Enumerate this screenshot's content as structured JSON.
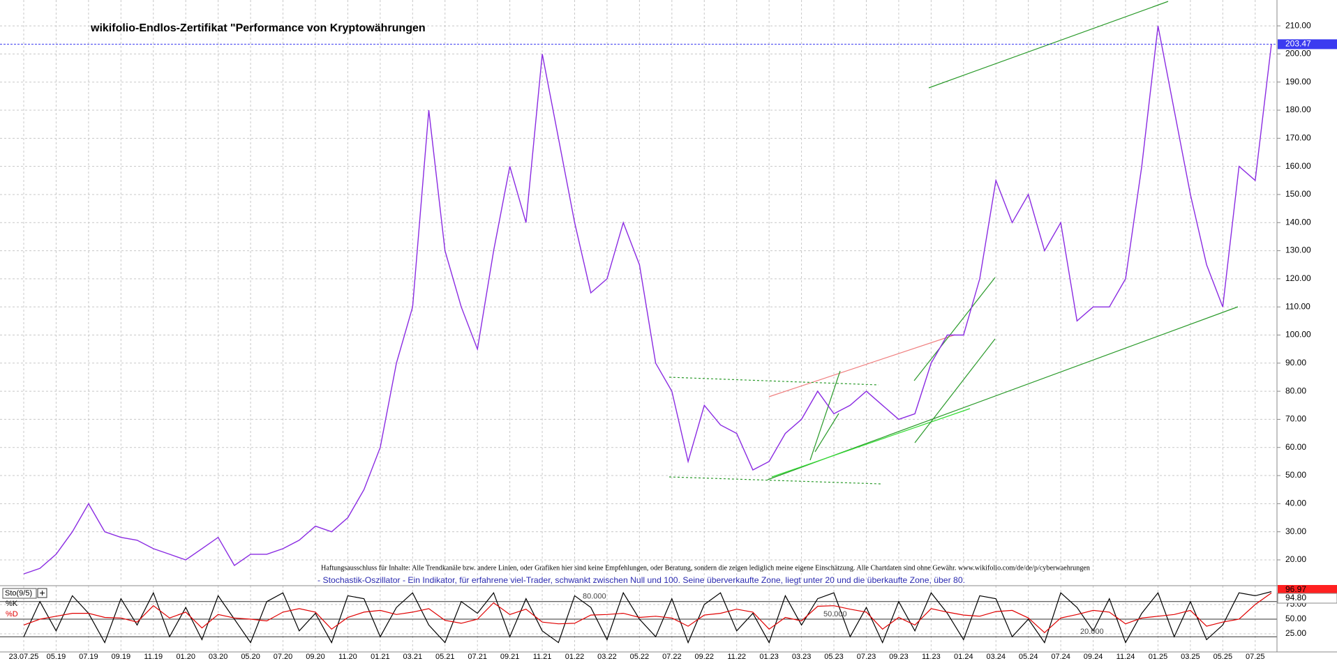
{
  "chart_data": {
    "type": "line",
    "title": "wikifolio-Endlos-Zertifikat \"Performance von Kryptowährungen",
    "annotations": [
      "Haftungsausschluss für Inhalte: Alle Trendkanäle bzw. andere Linien, oder Grafiken hier sind keine Empfehlungen, oder Beratung, sondern die zeigen lediglich meine eigene Einschätzung. Alle Chartdaten sind ohne Gewähr.  www.wikifolio.com/de/de/p/cyberwaehrungen",
      "- Stochastik-Oszillator - Ein Indikator, für erfahrene viel-Trader, schwankt zwischen Null und 100. Seine überverkaufte Zone, liegt unter 20 und die überkaufte Zone, über 80."
    ],
    "indicator_label": "Sto(9/5)",
    "categories": [
      "23.07.25",
      null,
      "05.19",
      null,
      "07.19",
      null,
      "09.19",
      null,
      "11.19",
      null,
      "01.20",
      null,
      "03.20",
      null,
      "05.20",
      null,
      "07.20",
      null,
      "09.20",
      null,
      "11.20",
      null,
      "01.21",
      null,
      "03.21",
      null,
      "05.21",
      null,
      "07.21",
      null,
      "09.21",
      null,
      "11.21",
      null,
      "01.22",
      null,
      "03.22",
      null,
      "05.22",
      null,
      "07.22",
      null,
      "09.22",
      null,
      "11.22",
      null,
      "01.23",
      null,
      "03.23",
      null,
      "05.23",
      null,
      "07.23",
      null,
      "09.23",
      null,
      "11.23",
      null,
      "01.24",
      null,
      "03.24",
      null,
      "05.24",
      null,
      "07.24",
      null,
      "09.24",
      null,
      "11.24",
      null,
      "01.25",
      null,
      "03.25",
      null,
      "05.25",
      null,
      "07.25",
      null
    ],
    "series": [
      {
        "color": "#8a2be2",
        "values": [
          15,
          17,
          22,
          30,
          40,
          30,
          28,
          27,
          24,
          22,
          20,
          24,
          28,
          18,
          22,
          22,
          24,
          27,
          32,
          30,
          35,
          45,
          60,
          90,
          110,
          180,
          130,
          110,
          95,
          130,
          160,
          140,
          200,
          170,
          140,
          115,
          120,
          140,
          125,
          90,
          80,
          55,
          75,
          68,
          65,
          52,
          55,
          65,
          70,
          80,
          72,
          75,
          80,
          75,
          70,
          72,
          90,
          100,
          100,
          120,
          155,
          140,
          150,
          130,
          140,
          105,
          110,
          110,
          120,
          160,
          210,
          180,
          150,
          125,
          110,
          160,
          155,
          203.47
        ]
      },
      {
        "name": "%K",
        "color": "#000000",
        "axis": "y2",
        "values": [
          20,
          80,
          30,
          90,
          60,
          10,
          85,
          40,
          95,
          20,
          70,
          15,
          90,
          50,
          10,
          80,
          95,
          30,
          60,
          10,
          90,
          85,
          20,
          70,
          95,
          40,
          10,
          80,
          60,
          95,
          20,
          85,
          30,
          10,
          90,
          70,
          15,
          95,
          50,
          20,
          85,
          10,
          75,
          95,
          30,
          60,
          10,
          90,
          40,
          85,
          95,
          20,
          70,
          10,
          80,
          30,
          95,
          60,
          15,
          90,
          85,
          20,
          50,
          10,
          95,
          70,
          30,
          85,
          10,
          60,
          95,
          20,
          80,
          15,
          40,
          95,
          90,
          96.97
        ]
      },
      {
        "name": "%D",
        "color": "#e00000",
        "axis": "y2",
        "values": [
          40,
          50,
          55,
          60,
          60,
          53,
          52,
          45,
          73,
          52,
          62,
          35,
          58,
          52,
          50,
          47,
          62,
          68,
          62,
          33,
          53,
          62,
          65,
          58,
          62,
          68,
          48,
          43,
          50,
          78,
          58,
          67,
          45,
          42,
          43,
          57,
          58,
          60,
          53,
          55,
          52,
          38,
          57,
          60,
          67,
          62,
          33,
          53,
          47,
          72,
          73,
          67,
          62,
          33,
          53,
          40,
          68,
          62,
          57,
          55,
          63,
          65,
          52,
          27,
          52,
          58,
          65,
          62,
          42,
          52,
          55,
          58,
          65,
          38,
          45,
          50,
          75,
          94.8
        ],
        "value_labels": [
          null,
          null,
          null,
          null,
          null,
          null,
          null,
          null,
          null,
          null,
          null,
          null,
          null,
          null,
          null,
          null,
          null,
          null,
          null,
          null,
          null,
          null,
          null,
          null,
          null,
          null,
          null,
          null,
          null,
          null,
          null,
          null,
          null,
          null,
          null,
          null,
          null,
          null,
          null,
          null,
          null,
          null,
          null,
          null,
          null,
          null,
          null,
          null,
          null,
          null,
          null,
          null,
          null,
          null,
          null,
          null,
          null,
          null,
          null,
          null,
          null,
          null,
          null,
          null,
          null,
          null,
          null,
          null,
          null,
          null,
          null,
          null,
          null,
          null,
          null,
          null,
          null,
          "94.80"
        ]
      }
    ],
    "ylim": [
      12.8,
      219.2
    ],
    "yticks": [
      {
        "value": 20,
        "label": "20.00"
      },
      {
        "value": 30,
        "label": "30.00"
      },
      {
        "value": 40,
        "label": "40.00"
      },
      {
        "value": 50,
        "label": "50.00"
      },
      {
        "value": 60,
        "label": "60.00"
      },
      {
        "value": 70,
        "label": "70.00"
      },
      {
        "value": 80,
        "label": "80.00"
      },
      {
        "value": 90,
        "label": "90.00"
      },
      {
        "value": 100,
        "label": "100.00"
      },
      {
        "value": 110,
        "label": "110.00"
      },
      {
        "value": 120,
        "label": "120.00"
      },
      {
        "value": 130,
        "label": "130.00"
      },
      {
        "value": 140,
        "label": "140.00"
      },
      {
        "value": 150,
        "label": "150.00"
      },
      {
        "value": 160,
        "label": "160.00"
      },
      {
        "value": 170,
        "label": "170.00"
      },
      {
        "value": 180,
        "label": "180.00"
      },
      {
        "value": 190,
        "label": "190.00"
      },
      {
        "value": 200,
        "label": "200.00"
      },
      {
        "value": 210,
        "label": "210.00"
      }
    ],
    "y2lim": [
      0,
      100
    ],
    "y2ticks": [
      {
        "value": 25,
        "label": "25.00"
      },
      {
        "value": 50,
        "label": "50.00"
      },
      {
        "value": 75,
        "label": "75.00"
      }
    ],
    "y2levels": [
      {
        "value": 80,
        "label": "80.000"
      },
      {
        "value": 50,
        "label": "50.000"
      },
      {
        "value": 20,
        "label": "20.000"
      }
    ],
    "grid": true
  }
}
